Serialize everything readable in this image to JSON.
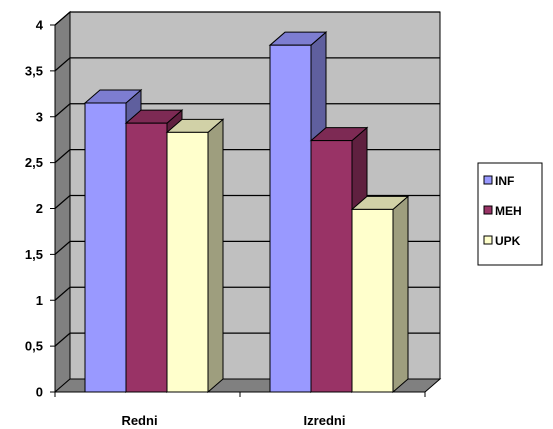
{
  "chart_data": {
    "type": "bar",
    "title": "",
    "xlabel": "",
    "ylabel": "",
    "categories": [
      "Redni",
      "Izredni"
    ],
    "series": [
      {
        "name": "INF",
        "values": [
          3.15,
          3.78
        ],
        "color": "#9999FF"
      },
      {
        "name": "MEH",
        "values": [
          2.93,
          2.74
        ],
        "color": "#993366"
      },
      {
        "name": "UPK",
        "values": [
          2.83,
          1.99
        ],
        "color": "#FFFFCC"
      }
    ],
    "ylim": [
      0,
      4
    ],
    "yticks": [
      "0",
      "0,5",
      "1",
      "1,5",
      "2",
      "2,5",
      "3",
      "3,5",
      "4"
    ],
    "grid": true,
    "legend_position": "right",
    "three_d": true,
    "wall_color": "#C0C0C0"
  }
}
